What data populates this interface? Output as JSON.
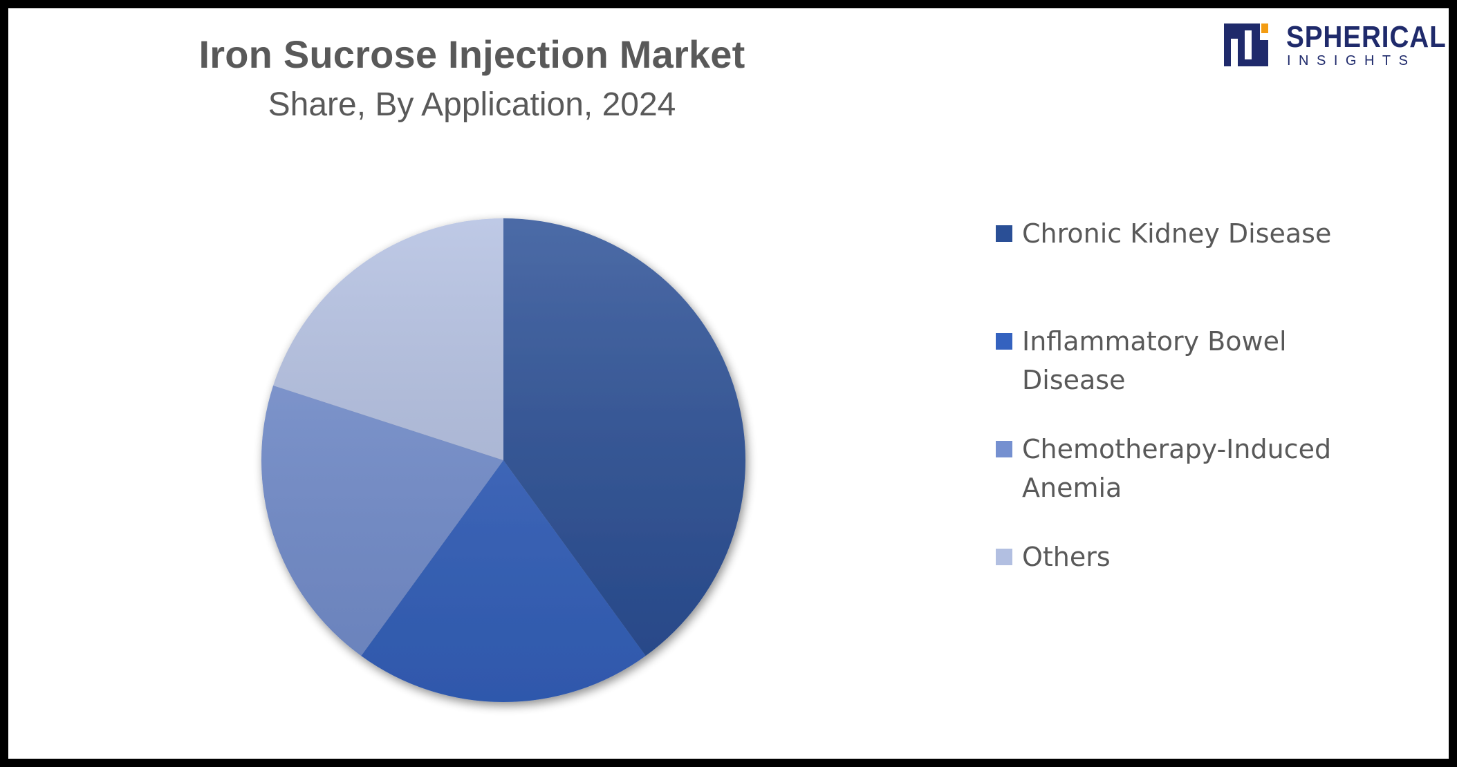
{
  "chart_data": {
    "type": "pie",
    "title": "Iron Sucrose Injection Market",
    "subtitle": "Share, By Application, 2024",
    "categories": [
      "Chronic Kidney Disease",
      "Inflammatory Bowel Disease",
      "Chemotherapy-Induced Anemia",
      "Others"
    ],
    "values": [
      40,
      20,
      20,
      20
    ],
    "colors": [
      "#2a4f96",
      "#3462bf",
      "#7590d0",
      "#b2bfe1"
    ],
    "legend_position": "right"
  },
  "brand": {
    "line1": "SPHERICAL",
    "line2": "INSIGHTS",
    "colors": {
      "navy": "#1f2a6b",
      "orange": "#f39c12"
    }
  }
}
